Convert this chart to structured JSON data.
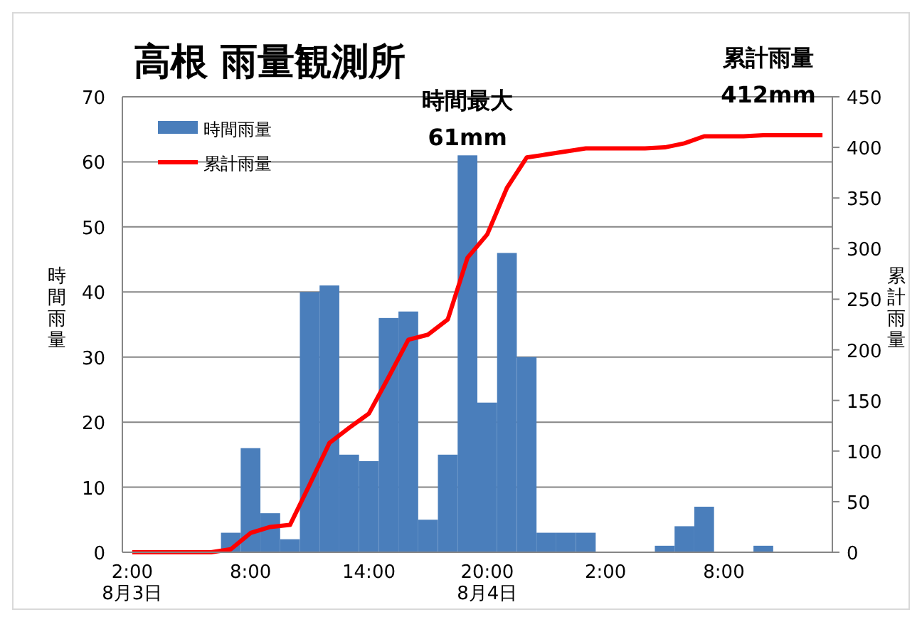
{
  "chart_data": {
    "type": "bar",
    "title": "高根  雨量観測所",
    "categories": [
      "2:00\n8月3日",
      null,
      null,
      null,
      null,
      null,
      "8:00",
      null,
      null,
      null,
      null,
      null,
      "14:00",
      null,
      null,
      null,
      null,
      null,
      "20:00\n8月4日",
      null,
      null,
      null,
      null,
      null,
      "2:00",
      null,
      null,
      null,
      null,
      null,
      "8:00",
      null,
      null,
      null,
      null,
      null
    ],
    "series": [
      {
        "name": "時間雨量",
        "color": "#4a7ebb",
        "values": [
          0,
          0,
          0,
          0,
          0,
          3,
          16,
          6,
          2,
          40,
          41,
          15,
          14,
          36,
          37,
          5,
          15,
          61,
          23,
          46,
          30,
          3,
          3,
          3,
          0,
          0,
          0,
          1,
          4,
          7,
          0,
          0,
          1,
          0,
          0,
          0
        ]
      },
      {
        "name": "累計雨量",
        "type": "line",
        "axis": "y2",
        "color": "#ff0000",
        "values": [
          0,
          0,
          0,
          0,
          0,
          3,
          19,
          25,
          27,
          67,
          108,
          123,
          137,
          173,
          210,
          215,
          230,
          291,
          314,
          360,
          390,
          393,
          396,
          399,
          399,
          399,
          399,
          400,
          404,
          411,
          411,
          411,
          412,
          412,
          412,
          412
        ]
      }
    ],
    "ylabel": "時間雨量",
    "y2label": "累計雨量",
    "ylim": [
      0,
      70
    ],
    "yticks": [
      0,
      10,
      20,
      30,
      40,
      50,
      60,
      70
    ],
    "y2lim": [
      0,
      450
    ],
    "y2ticks": [
      0,
      50,
      100,
      150,
      200,
      250,
      300,
      350,
      400,
      450
    ],
    "grid": "y",
    "legend": "top left",
    "line_style": "solid",
    "marker": "none",
    "annotations": [
      "時間最大\n61mm",
      "累計雨量\n412mm"
    ]
  }
}
